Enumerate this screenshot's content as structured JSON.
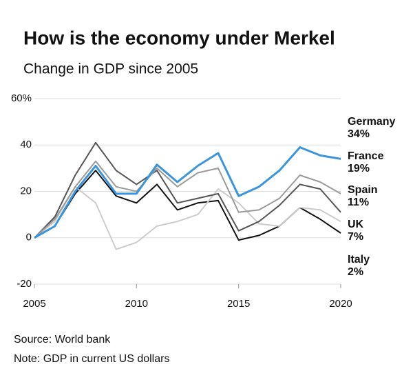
{
  "chart_data": {
    "type": "line",
    "title": "How is the economy under Merkel",
    "subtitle": "Change in GDP since 2005",
    "source": "Source: World bank",
    "note": "Note: GDP in current US dollars",
    "x": [
      2005,
      2006,
      2007,
      2008,
      2009,
      2010,
      2011,
      2012,
      2013,
      2014,
      2015,
      2016,
      2017,
      2018,
      2019,
      2020
    ],
    "xlim": [
      2005,
      2020
    ],
    "xticks": [
      2005,
      2010,
      2015,
      2020
    ],
    "ylim": [
      -20,
      60
    ],
    "yticks": [
      -20,
      0,
      20,
      40,
      {
        "value": 60,
        "label": "60%"
      }
    ],
    "grid": true,
    "series": [
      {
        "name": "Germany",
        "color": "#3a94de",
        "values": [
          0,
          5,
          20,
          31,
          19,
          19,
          31.5,
          24,
          31,
          36.5,
          18,
          22,
          29,
          39,
          35.5,
          34
        ],
        "value_labels": [
          null,
          null,
          null,
          null,
          null,
          null,
          null,
          null,
          null,
          null,
          null,
          null,
          null,
          null,
          null,
          "34%"
        ]
      },
      {
        "name": "France",
        "color": "#9a9a9a",
        "values": [
          0,
          8,
          22,
          33,
          22,
          20,
          30,
          22,
          28,
          30,
          11,
          12,
          17,
          27,
          24,
          19
        ],
        "value_labels": [
          null,
          null,
          null,
          null,
          null,
          null,
          null,
          null,
          null,
          null,
          null,
          null,
          null,
          null,
          null,
          "19%"
        ]
      },
      {
        "name": "Spain",
        "color": "#555555",
        "values": [
          0,
          9,
          27,
          41,
          29,
          23,
          29,
          15,
          17,
          19,
          3,
          7,
          14,
          23,
          21,
          11
        ],
        "value_labels": [
          null,
          null,
          null,
          null,
          null,
          null,
          null,
          null,
          null,
          null,
          null,
          null,
          null,
          null,
          null,
          "11%"
        ]
      },
      {
        "name": "UK",
        "color": "#cccccc",
        "values": [
          0,
          7,
          22,
          15,
          -5,
          -2,
          5,
          7,
          10,
          21,
          15,
          6,
          5,
          13,
          12,
          7
        ],
        "value_labels": [
          null,
          null,
          null,
          null,
          null,
          null,
          null,
          null,
          null,
          null,
          null,
          null,
          null,
          null,
          null,
          "7%"
        ]
      },
      {
        "name": "Italy",
        "color": "#111111",
        "values": [
          0,
          5,
          19,
          29,
          18,
          15,
          23,
          12,
          15,
          16,
          -1,
          1,
          5,
          13,
          8,
          2
        ],
        "value_labels": [
          null,
          null,
          null,
          null,
          null,
          null,
          null,
          null,
          null,
          null,
          null,
          null,
          null,
          null,
          null,
          "2%"
        ]
      }
    ]
  }
}
